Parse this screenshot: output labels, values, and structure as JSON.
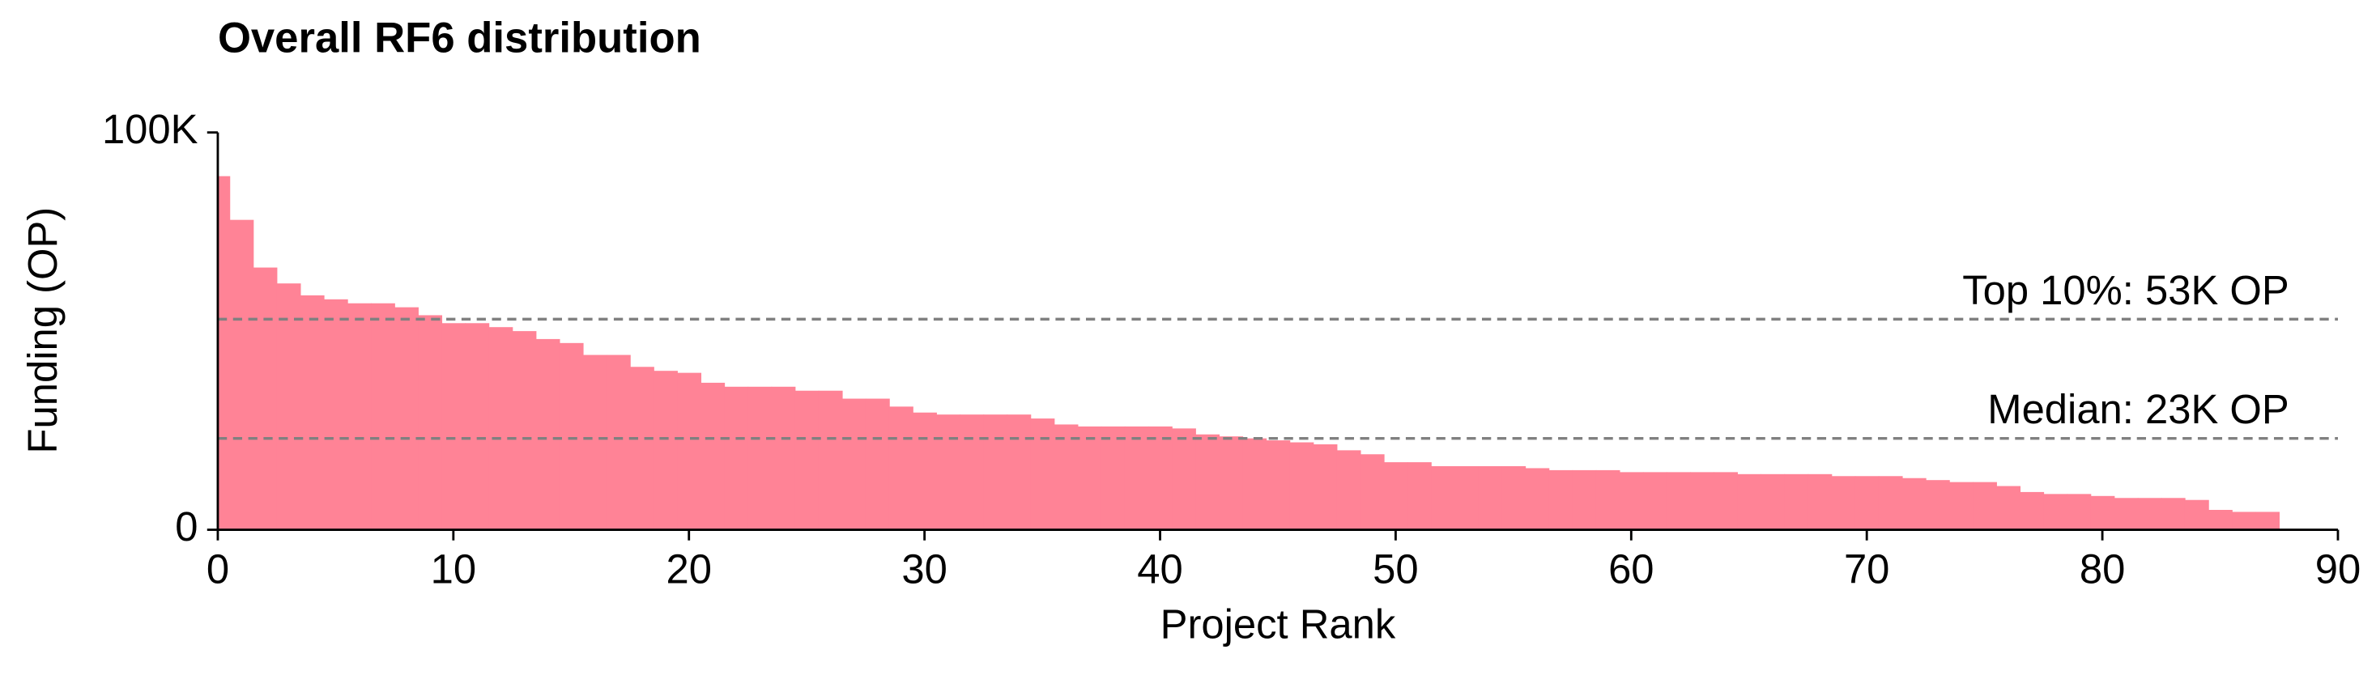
{
  "chart_data": {
    "type": "bar",
    "title": "Overall RF6 distribution",
    "x_label": "Project Rank",
    "y_label": "Funding (OP)",
    "x": [
      0,
      1,
      2,
      3,
      4,
      5,
      6,
      7,
      8,
      9,
      10,
      11,
      12,
      13,
      14,
      15,
      16,
      17,
      18,
      19,
      20,
      21,
      22,
      23,
      24,
      25,
      26,
      27,
      28,
      29,
      30,
      31,
      32,
      33,
      34,
      35,
      36,
      37,
      38,
      39,
      40,
      41,
      42,
      43,
      44,
      45,
      46,
      47,
      48,
      49,
      50,
      51,
      52,
      53,
      54,
      55,
      56,
      57,
      58,
      59,
      60,
      61,
      62,
      63,
      64,
      65,
      66,
      67,
      68,
      69,
      70,
      71,
      72,
      73,
      74,
      75,
      76,
      77,
      78,
      79,
      80,
      81,
      82,
      83,
      84,
      85,
      86,
      87
    ],
    "values": [
      89000,
      78000,
      66000,
      62000,
      59000,
      58000,
      57000,
      57000,
      56000,
      54000,
      52000,
      52000,
      51000,
      50000,
      48000,
      47000,
      44000,
      44000,
      41000,
      40000,
      39500,
      37000,
      36000,
      36000,
      36000,
      35000,
      35000,
      33000,
      33000,
      31000,
      29500,
      29000,
      29000,
      29000,
      29000,
      28000,
      26500,
      26000,
      26000,
      26000,
      26000,
      25500,
      24000,
      23500,
      23000,
      22500,
      22000,
      21500,
      20000,
      19000,
      17000,
      17000,
      16000,
      16000,
      16000,
      16000,
      15500,
      15000,
      15000,
      15000,
      14500,
      14500,
      14500,
      14500,
      14500,
      14000,
      14000,
      14000,
      14000,
      13500,
      13500,
      13500,
      13000,
      12500,
      12000,
      12000,
      11000,
      9500,
      9000,
      9000,
      8500,
      8000,
      8000,
      8000,
      7500,
      5000,
      4500,
      4500
    ],
    "color": "#ff8396",
    "xlim": [
      0,
      90
    ],
    "xticks": [
      0,
      10,
      20,
      30,
      40,
      50,
      60,
      70,
      80,
      90
    ],
    "ylim": [
      0,
      100000
    ],
    "yticks": [
      0,
      {
        "value": 100000,
        "label": "100K"
      }
    ],
    "reference_lines": [
      {
        "value": 53000,
        "label": "Top 10%: 53K OP",
        "color": "#808080"
      },
      {
        "value": 23000,
        "label": "Median: 23K OP",
        "color": "#808080"
      }
    ]
  }
}
